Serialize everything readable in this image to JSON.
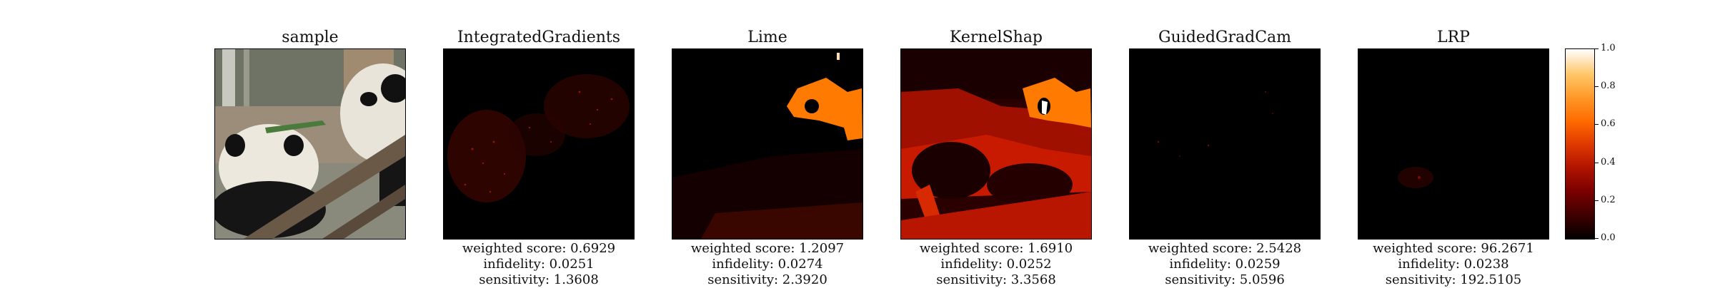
{
  "panels": [
    {
      "title": "sample"
    },
    {
      "title": "IntegratedGradients",
      "weighted_score": "weighted score: 0.6929",
      "infidelity": "infidelity: 0.0251",
      "sensitivity": "sensitivity: 1.3608"
    },
    {
      "title": "Lime",
      "weighted_score": "weighted score: 1.2097",
      "infidelity": "infidelity: 0.0274",
      "sensitivity": "sensitivity: 2.3920"
    },
    {
      "title": "KernelShap",
      "weighted_score": "weighted score: 1.6910",
      "infidelity": "infidelity: 0.0252",
      "sensitivity": "sensitivity: 3.3568"
    },
    {
      "title": "GuidedGradCam",
      "weighted_score": "weighted score: 2.5428",
      "infidelity": "infidelity: 0.0259",
      "sensitivity": "sensitivity: 5.0596"
    },
    {
      "title": "LRP",
      "weighted_score": "weighted score: 96.2671",
      "infidelity": "infidelity: 0.0238",
      "sensitivity": "sensitivity: 192.5105"
    }
  ],
  "colorbar": {
    "ticks": [
      "0.0",
      "0.2",
      "0.4",
      "0.6",
      "0.8",
      "1.0"
    ],
    "colors": {
      "low": "#000000",
      "mid": "#e03a00",
      "high": "#ffffff"
    }
  }
}
